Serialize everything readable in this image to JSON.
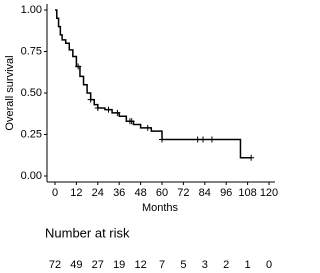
{
  "chart_data": {
    "type": "km",
    "xlabel": "Months",
    "ylabel": "Overall survival",
    "x": [
      0,
      1,
      2,
      3,
      4,
      6,
      8,
      10,
      12,
      14,
      16,
      18,
      20,
      22,
      24,
      28,
      32,
      36,
      40,
      44,
      48,
      54,
      60,
      104,
      110
    ],
    "values": [
      1.0,
      0.95,
      0.9,
      0.85,
      0.82,
      0.8,
      0.76,
      0.72,
      0.66,
      0.6,
      0.55,
      0.5,
      0.46,
      0.43,
      0.41,
      0.4,
      0.38,
      0.36,
      0.33,
      0.31,
      0.29,
      0.27,
      0.22,
      0.11,
      0.11
    ],
    "censor": {
      "x": [
        13,
        20,
        24,
        30,
        35,
        42,
        43,
        52,
        60,
        80,
        83,
        88,
        110
      ],
      "values": [
        0.66,
        0.46,
        0.41,
        0.4,
        0.38,
        0.33,
        0.33,
        0.29,
        0.22,
        0.22,
        0.22,
        0.22,
        0.11
      ]
    },
    "color": "#000000",
    "xlim": [
      0,
      120
    ],
    "xticks": [
      0,
      12,
      24,
      36,
      48,
      60,
      72,
      84,
      96,
      108,
      120
    ],
    "ylim": [
      0,
      1
    ],
    "yticks": [
      {
        "value": 0,
        "label": "0.00"
      },
      {
        "value": 0.25,
        "label": "0.25"
      },
      {
        "value": 0.5,
        "label": "0.50"
      },
      {
        "value": 0.75,
        "label": "0.75"
      },
      {
        "value": 1,
        "label": "1.00"
      }
    ],
    "risk_table": {
      "title": "Number at risk",
      "values": [
        72,
        49,
        27,
        19,
        12,
        7,
        5,
        3,
        2,
        1,
        0
      ]
    }
  }
}
